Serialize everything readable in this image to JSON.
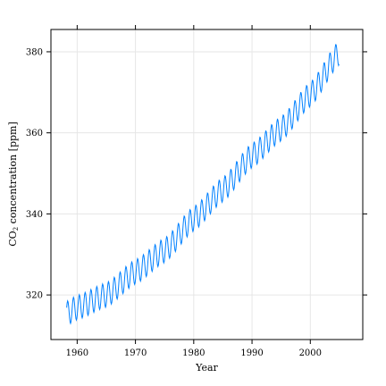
{
  "chart_data": {
    "type": "line",
    "title": "",
    "xlabel": "Year",
    "ylabel": {
      "prefix": "CO",
      "subscript": "2",
      "suffix": " concentration [ppm]"
    },
    "xlim": [
      1955.5,
      2009
    ],
    "ylim": [
      309,
      385.5
    ],
    "x_ticks": [
      1960,
      1970,
      1980,
      1990,
      2000
    ],
    "x_tick_labels": [
      "1960",
      "1970",
      "1980",
      "1990",
      "2000"
    ],
    "y_ticks": [
      320,
      340,
      360,
      380
    ],
    "y_tick_labels": [
      "320",
      "340",
      "360",
      "380"
    ],
    "grid": true,
    "legend": "none",
    "line_color": "#0080ff",
    "series": [
      {
        "start": 1958.2,
        "end": 2005.0,
        "step": 0.0833,
        "trend_points": [
          [
            1958,
            315.3
          ],
          [
            1960,
            316.9
          ],
          [
            1965,
            320.0
          ],
          [
            1970,
            325.7
          ],
          [
            1975,
            331.0
          ],
          [
            1980,
            338.8
          ],
          [
            1985,
            346.0
          ],
          [
            1990,
            354.4
          ],
          [
            1995,
            361.0
          ],
          [
            2000,
            369.5
          ],
          [
            2005,
            379.8
          ]
        ],
        "seasonal_amplitude": 3.0
      }
    ]
  }
}
